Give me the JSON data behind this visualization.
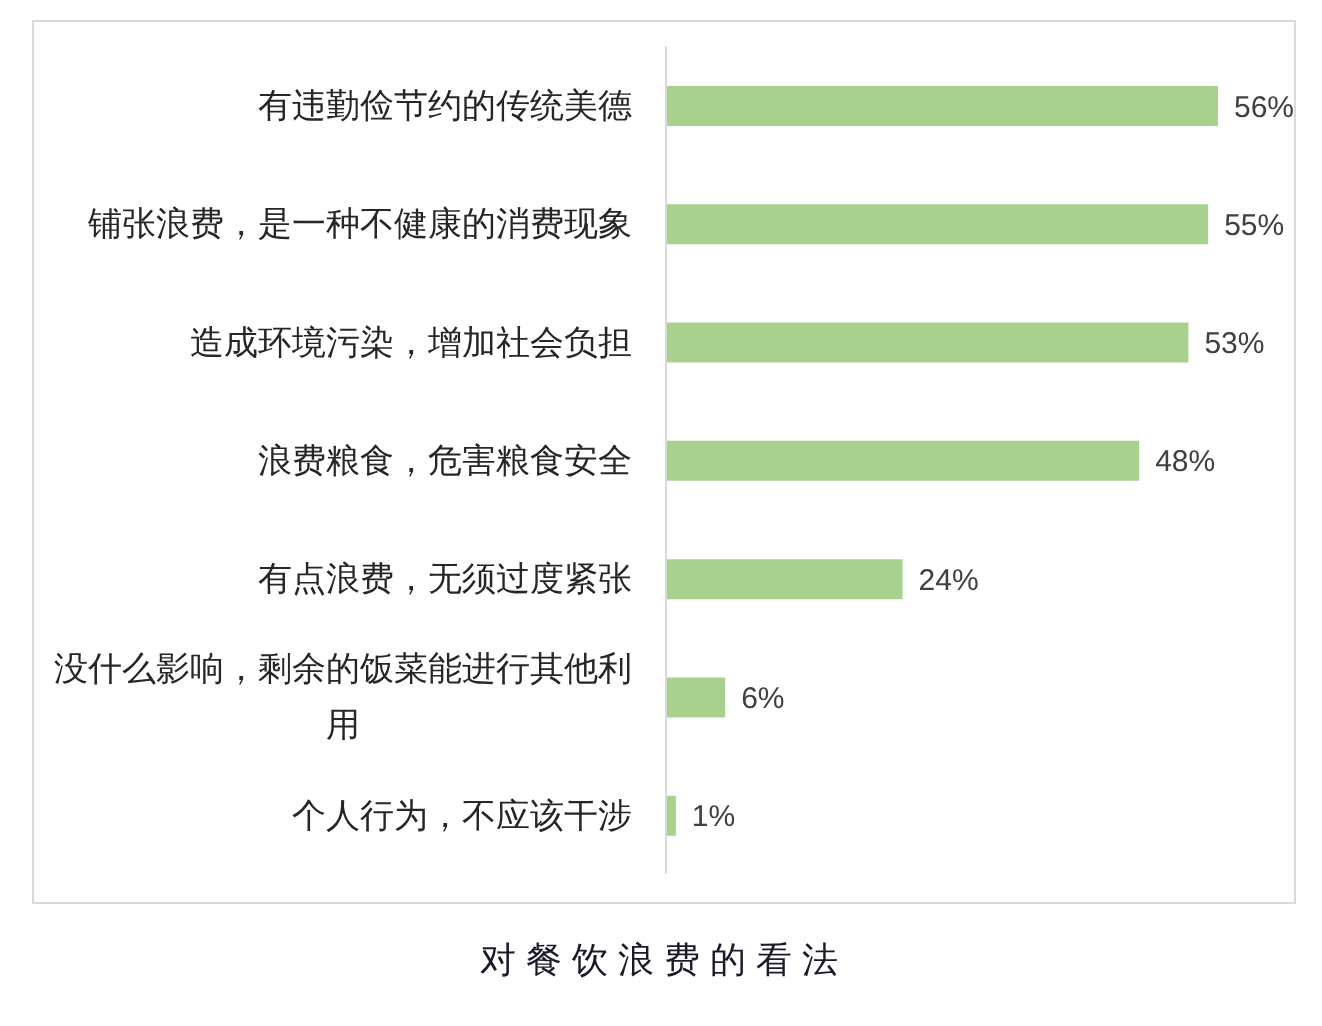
{
  "chart_data": {
    "type": "bar",
    "orientation": "horizontal",
    "title": "对餐饮浪费的看法",
    "categories": [
      "有违勤俭节约的传统美德",
      "铺张浪费，是一种不健康的消费现象",
      "造成环境污染，增加社会负担",
      "浪费粮食，危害粮食安全",
      "有点浪费，无须过度紧张",
      "没什么影响，剩余的饭菜能进行其他利用",
      "个人行为，不应该干涉"
    ],
    "values": [
      56,
      55,
      53,
      48,
      24,
      6,
      1
    ],
    "value_labels": [
      "56%",
      "55%",
      "53%",
      "48%",
      "24%",
      "6%",
      "1%"
    ],
    "color": "#a9d18e",
    "xlim": [
      0,
      56
    ]
  }
}
